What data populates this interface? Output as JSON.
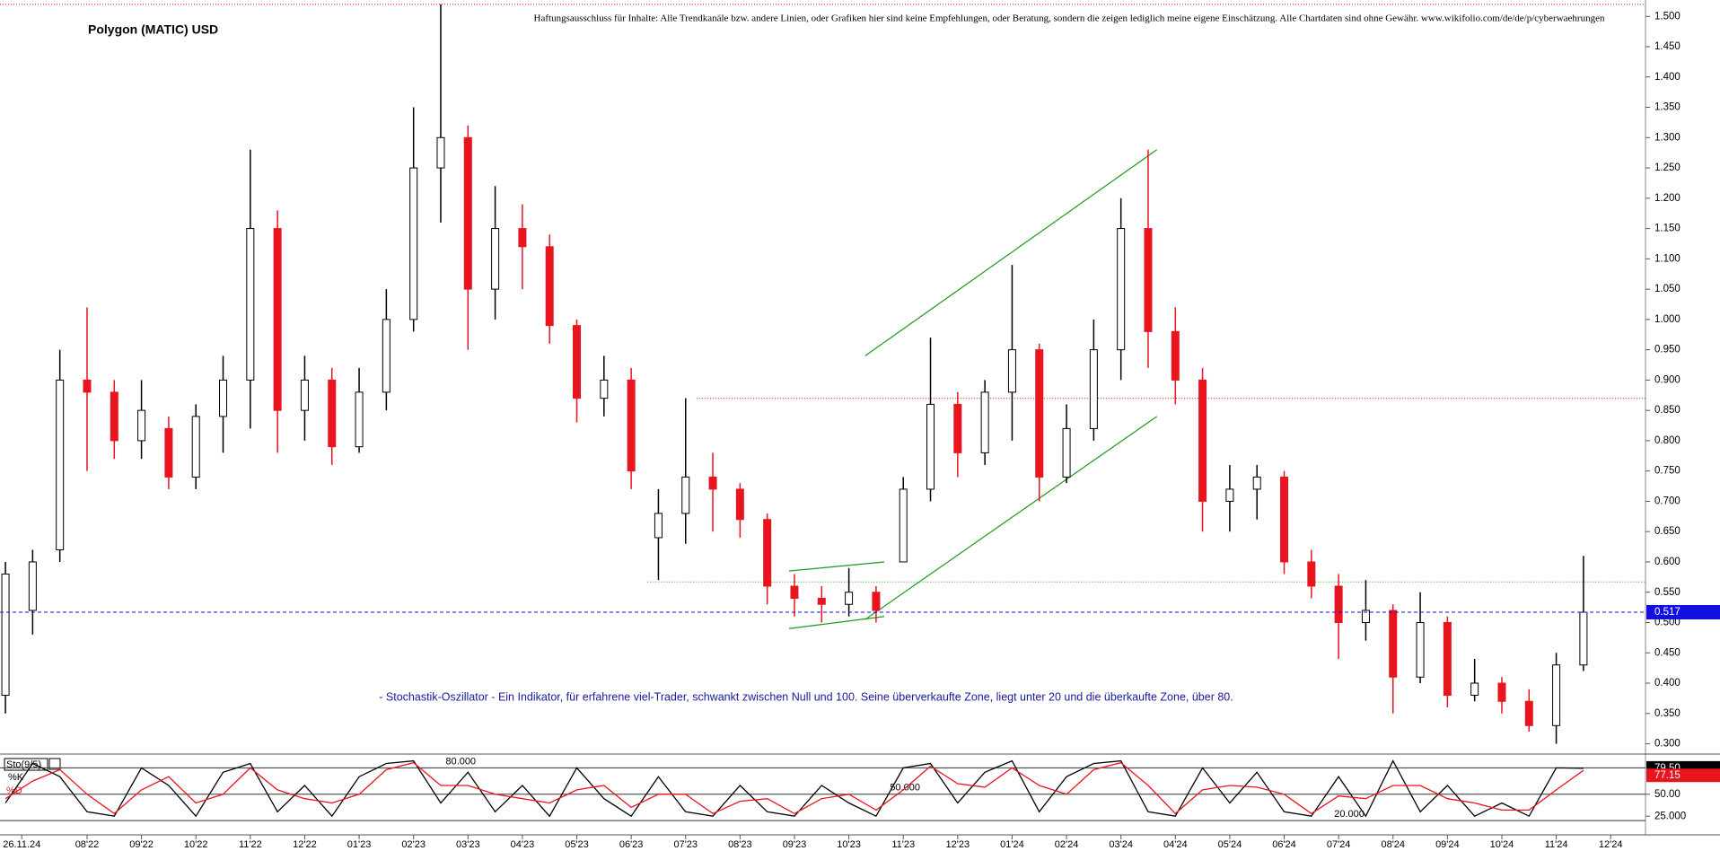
{
  "chart_data": [
    {
      "type": "candlestick",
      "title": "Polygon (MATIC) USD",
      "annotations": [
        "Haftungsausschluss für Inhalte: Alle Trendkanäle bzw. andere Linien, oder Grafiken hier sind keine Empfehlungen, oder Beratung, sondern die zeigen lediglich meine eigene Einschätzung. Alle Chartdaten sind ohne Gewähr.  www.wikifolio.com/de/de/p/cyberwaehrungen",
        "- Stochastik-Oszillator - Ein Indikator, für erfahrene viel-Trader, schwankt zwischen Null und 100. Seine überverkaufte Zone, liegt unter 20 und die überkaufte Zone, über 80."
      ],
      "x": [
        -0.5,
        0,
        0.5,
        1,
        1.5,
        2,
        2.5,
        3,
        3.5,
        4,
        4.5,
        5,
        5.5,
        6,
        6.5,
        7,
        7.5,
        8,
        8.5,
        9,
        9.5,
        10,
        10.5,
        11,
        11.5,
        12,
        12.5,
        13,
        13.5,
        14,
        14.5,
        15,
        15.5,
        16,
        16.5,
        17,
        17.5,
        18,
        18.5,
        19,
        19.5,
        20,
        20.5,
        21,
        21.5,
        22,
        22.5,
        23,
        23.5,
        24,
        24.5,
        25,
        25.5,
        26,
        26.5,
        27,
        27.5,
        28,
        28.5
      ],
      "open": [
        0.38,
        0.52,
        0.62,
        0.9,
        0.88,
        0.8,
        0.82,
        0.74,
        0.84,
        0.9,
        1.15,
        0.85,
        0.9,
        0.79,
        0.88,
        1.0,
        1.25,
        1.3,
        1.05,
        1.15,
        1.12,
        0.99,
        0.87,
        0.9,
        0.64,
        0.68,
        0.74,
        0.72,
        0.67,
        0.56,
        0.54,
        0.53,
        0.55,
        0.6,
        0.72,
        0.86,
        0.78,
        0.88,
        0.95,
        0.74,
        0.82,
        0.95,
        1.15,
        0.98,
        0.9,
        0.7,
        0.72,
        0.74,
        0.6,
        0.56,
        0.5,
        0.52,
        0.41,
        0.5,
        0.38,
        0.4,
        0.37,
        0.33,
        0.43
      ],
      "high": [
        0.6,
        0.62,
        0.95,
        1.02,
        0.9,
        0.9,
        0.84,
        0.86,
        0.94,
        1.28,
        1.18,
        0.94,
        0.92,
        0.92,
        1.05,
        1.35,
        1.52,
        1.32,
        1.22,
        1.19,
        1.14,
        1.0,
        0.94,
        0.92,
        0.72,
        0.87,
        0.78,
        0.73,
        0.68,
        0.58,
        0.56,
        0.59,
        0.56,
        0.74,
        0.97,
        0.88,
        0.9,
        1.09,
        0.96,
        0.86,
        1.0,
        1.2,
        1.28,
        1.02,
        0.92,
        0.76,
        0.76,
        0.75,
        0.62,
        0.58,
        0.57,
        0.53,
        0.55,
        0.51,
        0.44,
        0.41,
        0.39,
        0.45,
        0.61
      ],
      "low": [
        0.35,
        0.48,
        0.6,
        0.75,
        0.77,
        0.77,
        0.72,
        0.72,
        0.78,
        0.82,
        0.78,
        0.8,
        0.76,
        0.78,
        0.85,
        0.98,
        1.16,
        0.95,
        1.0,
        1.05,
        0.96,
        0.83,
        0.84,
        0.72,
        0.57,
        0.63,
        0.65,
        0.64,
        0.53,
        0.51,
        0.5,
        0.51,
        0.5,
        0.6,
        0.7,
        0.74,
        0.76,
        0.8,
        0.7,
        0.73,
        0.8,
        0.9,
        0.92,
        0.86,
        0.65,
        0.65,
        0.67,
        0.58,
        0.54,
        0.44,
        0.47,
        0.35,
        0.4,
        0.36,
        0.37,
        0.35,
        0.32,
        0.3,
        0.42
      ],
      "close": [
        0.58,
        0.6,
        0.9,
        0.88,
        0.8,
        0.85,
        0.74,
        0.84,
        0.9,
        1.15,
        0.85,
        0.9,
        0.79,
        0.88,
        1.0,
        1.25,
        1.3,
        1.05,
        1.15,
        1.12,
        0.99,
        0.87,
        0.9,
        0.75,
        0.68,
        0.74,
        0.72,
        0.67,
        0.56,
        0.54,
        0.53,
        0.55,
        0.52,
        0.72,
        0.86,
        0.78,
        0.88,
        0.95,
        0.74,
        0.82,
        0.95,
        1.15,
        0.98,
        0.9,
        0.7,
        0.72,
        0.74,
        0.6,
        0.56,
        0.5,
        0.52,
        0.41,
        0.5,
        0.38,
        0.4,
        0.37,
        0.33,
        0.43,
        0.517
      ],
      "value_labels": [
        null,
        null,
        null,
        null,
        null,
        null,
        null,
        null,
        null,
        null,
        null,
        null,
        null,
        null,
        null,
        null,
        null,
        null,
        null,
        null,
        null,
        null,
        null,
        null,
        null,
        null,
        null,
        null,
        null,
        null,
        null,
        null,
        null,
        null,
        null,
        null,
        null,
        null,
        null,
        null,
        null,
        null,
        null,
        null,
        null,
        null,
        null,
        null,
        null,
        null,
        null,
        null,
        null,
        null,
        null,
        null,
        null,
        null,
        "0.517"
      ],
      "up_color": "#000000",
      "down_color": "#e8141e",
      "last_color": "#1010e0",
      "xlim": [
        -0.6,
        29.64
      ],
      "ylim": [
        0.286,
        1.527
      ],
      "yticks": [
        {
          "value": 0.3,
          "label": "0.300"
        },
        {
          "value": 0.35,
          "label": "0.350"
        },
        {
          "value": 0.4,
          "label": "0.400"
        },
        {
          "value": 0.45,
          "label": "0.450"
        },
        {
          "value": 0.5,
          "label": "0.500"
        },
        {
          "value": 0.55,
          "label": "0.550"
        },
        {
          "value": 0.6,
          "label": "0.600"
        },
        {
          "value": 0.65,
          "label": "0.650"
        },
        {
          "value": 0.7,
          "label": "0.700"
        },
        {
          "value": 0.75,
          "label": "0.750"
        },
        {
          "value": 0.8,
          "label": "0.800"
        },
        {
          "value": 0.85,
          "label": "0.850"
        },
        {
          "value": 0.9,
          "label": "0.900"
        },
        {
          "value": 0.95,
          "label": "0.950"
        },
        {
          "value": 1.0,
          "label": "1.000"
        },
        {
          "value": 1.05,
          "label": "1.050"
        },
        {
          "value": 1.1,
          "label": "1.100"
        },
        {
          "value": 1.15,
          "label": "1.150"
        },
        {
          "value": 1.2,
          "label": "1.200"
        },
        {
          "value": 1.25,
          "label": "1.250"
        },
        {
          "value": 1.3,
          "label": "1.300"
        },
        {
          "value": 1.35,
          "label": "1.350"
        },
        {
          "value": 1.4,
          "label": "1.400"
        },
        {
          "value": 1.45,
          "label": "1.450"
        },
        {
          "value": 1.5,
          "label": "1.500"
        }
      ],
      "hlines": [
        {
          "value": 1.52,
          "from": -0.6,
          "color": "#e8141e"
        },
        {
          "value": 0.87,
          "from": 12.2,
          "color": "#e8141e"
        },
        {
          "value": 0.567,
          "from": 11.3,
          "color": "#2ca02c"
        }
      ],
      "trend_color": "#1e9a1e",
      "trendlines": [
        {
          "x": [
            15.3,
            20.66
          ],
          "y": [
            0.94,
            1.28
          ]
        },
        {
          "x": [
            15.3,
            20.66
          ],
          "y": [
            0.505,
            0.84
          ]
        },
        {
          "x": [
            13.9,
            15.65
          ],
          "y": [
            0.585,
            0.6
          ]
        },
        {
          "x": [
            13.9,
            15.65
          ],
          "y": [
            0.49,
            0.51
          ]
        }
      ]
    },
    {
      "type": "stochastic",
      "legend": "Sto(9/5)",
      "series": [
        {
          "name": "%K",
          "color": "#000000",
          "values": [
            40,
            85,
            70,
            30,
            25,
            80,
            60,
            25,
            75,
            85,
            30,
            60,
            25,
            70,
            85,
            88,
            40,
            75,
            30,
            60,
            25,
            80,
            45,
            25,
            70,
            30,
            25,
            60,
            30,
            25,
            60,
            40,
            25,
            80,
            85,
            40,
            75,
            88,
            30,
            70,
            85,
            88,
            30,
            25,
            80,
            40,
            75,
            30,
            25,
            70,
            25,
            88,
            30,
            60,
            25,
            40,
            25,
            80,
            79.5
          ],
          "value_labels": [
            null,
            null,
            null,
            null,
            null,
            null,
            null,
            null,
            null,
            null,
            null,
            null,
            null,
            null,
            null,
            null,
            null,
            null,
            null,
            null,
            null,
            null,
            null,
            null,
            null,
            null,
            null,
            null,
            null,
            null,
            null,
            null,
            null,
            null,
            null,
            null,
            null,
            null,
            null,
            null,
            null,
            null,
            null,
            null,
            null,
            null,
            null,
            null,
            null,
            null,
            null,
            null,
            null,
            null,
            null,
            null,
            null,
            null,
            "79.50"
          ]
        },
        {
          "name": "%D",
          "color": "#e8141e",
          "values": [
            45,
            65,
            78,
            50,
            28,
            55,
            70,
            40,
            50,
            80,
            55,
            45,
            40,
            50,
            78,
            86,
            60,
            60,
            50,
            45,
            40,
            55,
            60,
            35,
            50,
            50,
            28,
            42,
            45,
            28,
            45,
            50,
            32,
            55,
            82,
            62,
            58,
            80,
            60,
            50,
            78,
            86,
            60,
            28,
            55,
            60,
            58,
            50,
            28,
            48,
            45,
            60,
            60,
            45,
            40,
            32,
            32,
            55,
            77.15
          ],
          "value_labels": [
            null,
            null,
            null,
            null,
            null,
            null,
            null,
            null,
            null,
            null,
            null,
            null,
            null,
            null,
            null,
            null,
            null,
            null,
            null,
            null,
            null,
            null,
            null,
            null,
            null,
            null,
            null,
            null,
            null,
            null,
            null,
            null,
            null,
            null,
            null,
            null,
            null,
            null,
            null,
            null,
            null,
            null,
            null,
            null,
            null,
            null,
            null,
            null,
            null,
            null,
            null,
            null,
            null,
            null,
            null,
            null,
            null,
            null,
            "77.15"
          ]
        }
      ],
      "ylim": [
        15,
        92.7
      ],
      "yticks": [
        {
          "value": 50,
          "label": "50.00"
        },
        {
          "value": 25,
          "label": "25.000"
        }
      ],
      "levels": [
        {
          "value": 80,
          "label": "80.000"
        },
        {
          "value": 50,
          "label": "50.000"
        },
        {
          "value": 20,
          "label": "20.000"
        }
      ],
      "xticks": [
        {
          "value": -0.2,
          "label": "26.11.24"
        },
        {
          "value": 1,
          "label": "08'22"
        },
        {
          "value": 2,
          "label": "09'22"
        },
        {
          "value": 3,
          "label": "10'22"
        },
        {
          "value": 4,
          "label": "11'22"
        },
        {
          "value": 5,
          "label": "12'22"
        },
        {
          "value": 6,
          "label": "01'23"
        },
        {
          "value": 7,
          "label": "02'23"
        },
        {
          "value": 8,
          "label": "03'23"
        },
        {
          "value": 9,
          "label": "04'23"
        },
        {
          "value": 10,
          "label": "05'23"
        },
        {
          "value": 11,
          "label": "06'23"
        },
        {
          "value": 12,
          "label": "07'23"
        },
        {
          "value": 13,
          "label": "08'23"
        },
        {
          "value": 14,
          "label": "09'23"
        },
        {
          "value": 15,
          "label": "10'23"
        },
        {
          "value": 16,
          "label": "11'23"
        },
        {
          "value": 17,
          "label": "12'23"
        },
        {
          "value": 18,
          "label": "01'24"
        },
        {
          "value": 19,
          "label": "02'24"
        },
        {
          "value": 20,
          "label": "03'24"
        },
        {
          "value": 21,
          "label": "04'24"
        },
        {
          "value": 22,
          "label": "05'24"
        },
        {
          "value": 23,
          "label": "06'24"
        },
        {
          "value": 24,
          "label": "07'24"
        },
        {
          "value": 25,
          "label": "08'24"
        },
        {
          "value": 26,
          "label": "09'24"
        },
        {
          "value": 27,
          "label": "10'24"
        },
        {
          "value": 28,
          "label": "11'24"
        },
        {
          "value": 29,
          "label": "12'24"
        }
      ]
    }
  ]
}
